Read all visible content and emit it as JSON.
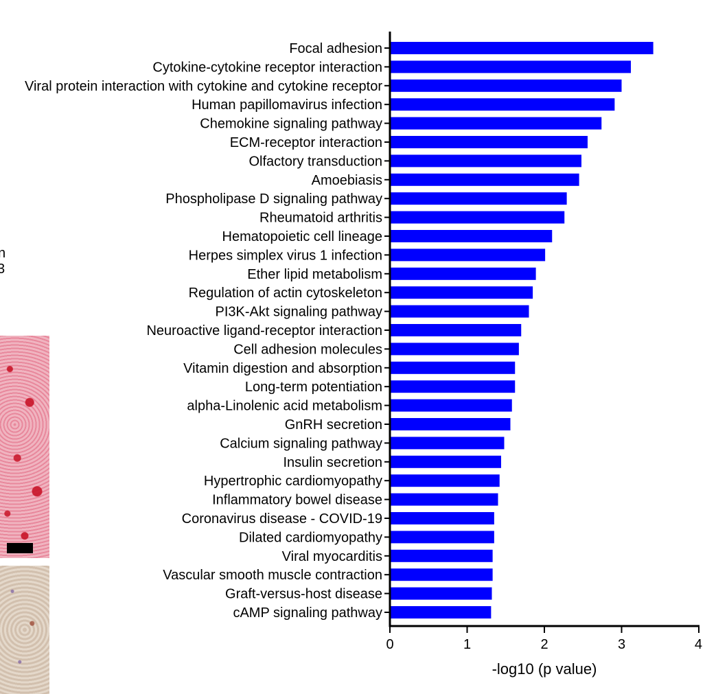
{
  "chart_data": {
    "type": "bar",
    "orientation": "horizontal",
    "title": "",
    "xlabel": "-log10 (p value)",
    "ylabel": "",
    "xlim": [
      0,
      4
    ],
    "xticks": [
      0,
      1,
      2,
      3,
      4
    ],
    "grid": false,
    "legend": "none",
    "bar_color": "#0000ff",
    "categories": [
      "Focal adhesion",
      "Cytokine-cytokine receptor interaction",
      "Viral protein interaction with cytokine and cytokine receptor",
      "Human papillomavirus infection",
      "Chemokine signaling pathway",
      "ECM-receptor interaction",
      "Olfactory transduction",
      "Amoebiasis",
      "Phospholipase D signaling pathway",
      "Rheumatoid arthritis",
      "Hematopoietic cell lineage",
      "Herpes simplex virus 1 infection",
      "Ether lipid metabolism",
      "Regulation of actin cytoskeleton",
      "PI3K-Akt signaling pathway",
      "Neuroactive ligand-receptor interaction",
      "Cell adhesion molecules",
      "Vitamin digestion and absorption",
      "Long-term potentiation",
      "alpha-Linolenic acid metabolism",
      "GnRH secretion",
      "Calcium signaling pathway",
      "Insulin secretion",
      "Hypertrophic cardiomyopathy",
      "Inflammatory bowel disease",
      "Coronavirus disease - COVID-19",
      "Dilated cardiomyopathy",
      "Viral myocarditis",
      "Vascular smooth muscle contraction",
      "Graft-versus-host disease",
      "cAMP signaling pathway"
    ],
    "values": [
      3.41,
      3.12,
      3.0,
      2.91,
      2.74,
      2.56,
      2.48,
      2.45,
      2.29,
      2.26,
      2.1,
      2.01,
      1.89,
      1.85,
      1.8,
      1.7,
      1.67,
      1.62,
      1.62,
      1.58,
      1.56,
      1.48,
      1.44,
      1.42,
      1.4,
      1.35,
      1.35,
      1.33,
      1.33,
      1.32,
      1.31
    ]
  },
  "side_fragments": {
    "text_line_1": "n",
    "text_line_2": "3",
    "fragment_colors": {
      "stain_red": "#e0607a",
      "stain_tan": "#d8c8b8"
    }
  }
}
